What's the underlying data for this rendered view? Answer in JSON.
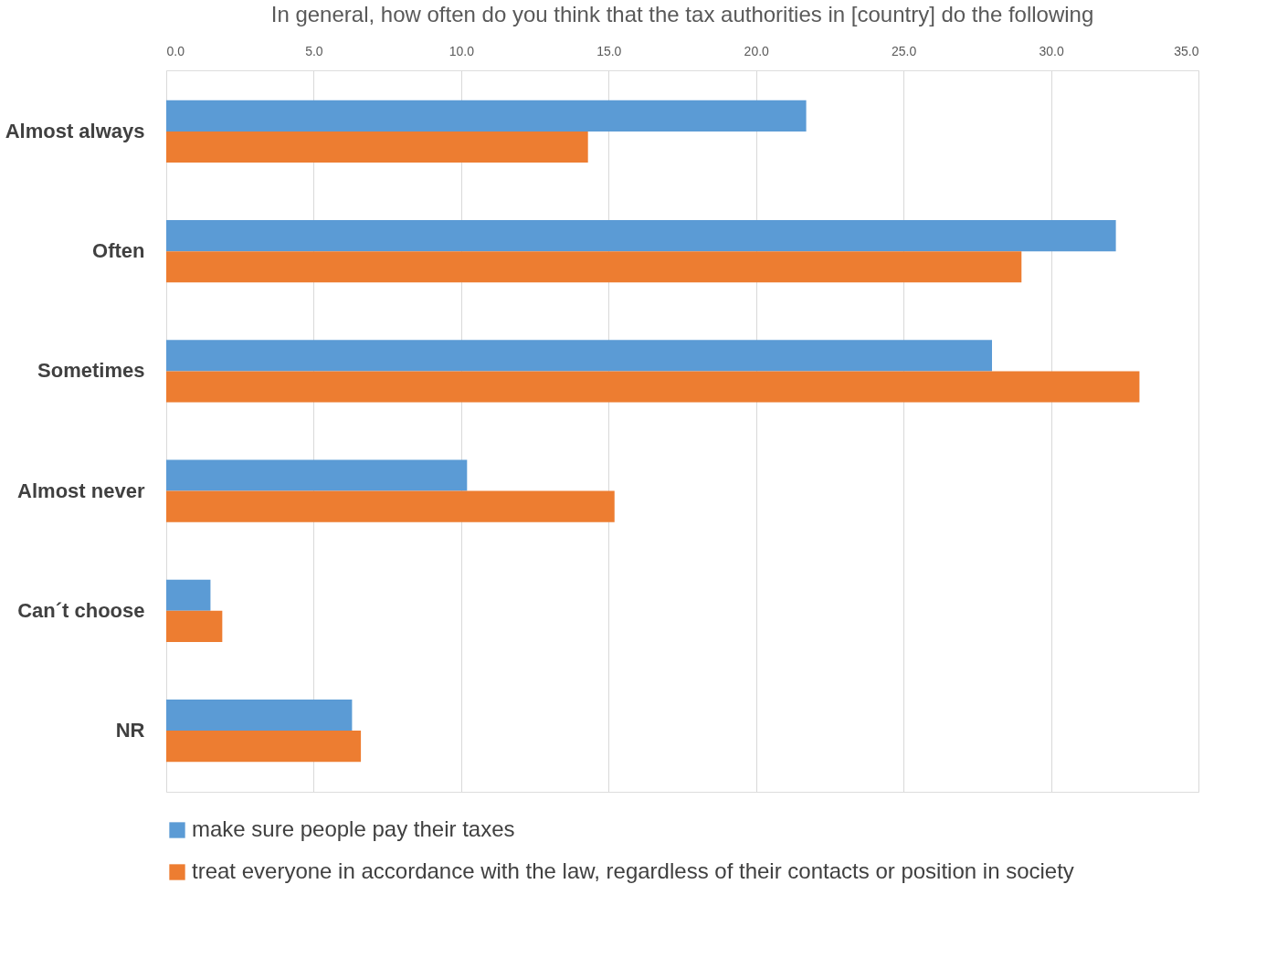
{
  "chart_data": {
    "type": "bar",
    "orientation": "horizontal",
    "title": "In general, how often do you think that the tax authorities in [country] do the following",
    "categories": [
      "Almost always",
      "Often",
      "Sometimes",
      "Almost never",
      "Can´t choose",
      "NR"
    ],
    "series": [
      {
        "name": "make sure people pay their taxes",
        "color": "#5b9bd5",
        "values": [
          21.7,
          32.2,
          28.0,
          10.2,
          1.5,
          6.3
        ]
      },
      {
        "name": "treat everyone in accordance with the law, regardless of their contacts or position in society",
        "color": "#ed7d31",
        "values": [
          14.3,
          29.0,
          33.0,
          15.2,
          1.9,
          6.6
        ]
      }
    ],
    "xlim": [
      0,
      35
    ],
    "xticks": [
      {
        "value": 0,
        "label": "0.0"
      },
      {
        "value": 5,
        "label": "5.0"
      },
      {
        "value": 10,
        "label": "10.0"
      },
      {
        "value": 15,
        "label": "15.0"
      },
      {
        "value": 20,
        "label": "20.0"
      },
      {
        "value": 25,
        "label": "25.0"
      },
      {
        "value": 30,
        "label": "30.0"
      },
      {
        "value": 35,
        "label": "35.0"
      }
    ],
    "grid": "x",
    "legend": "bottom"
  }
}
